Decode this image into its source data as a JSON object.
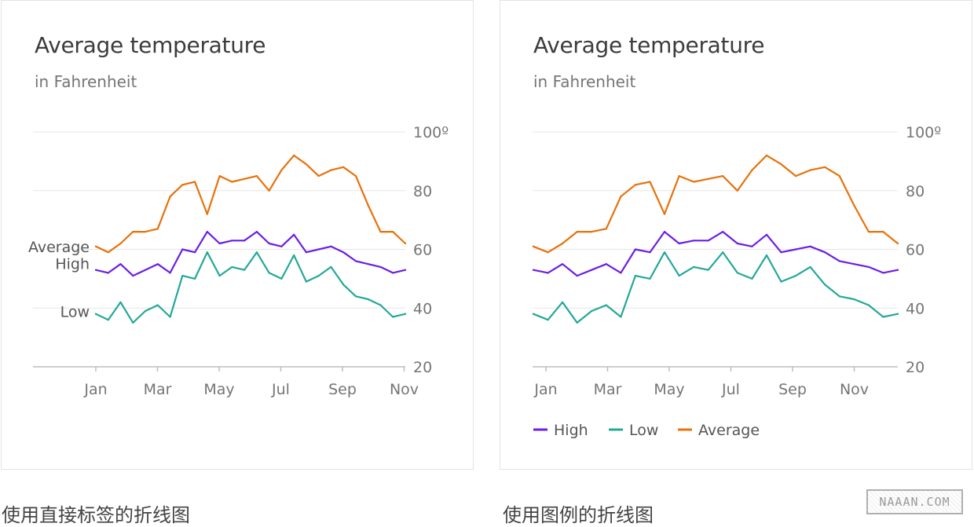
{
  "colors": {
    "high": "#6a1ee6",
    "low": "#23a898",
    "average": "#e8710a"
  },
  "left_card": {
    "title": "Average temperature",
    "subtitle": "in Fahrenheit"
  },
  "right_card": {
    "title": "Average temperature",
    "subtitle": "in Fahrenheit"
  },
  "captions": {
    "left": "使用直接标签的折线图",
    "right": "使用图例的折线图"
  },
  "watermark": "NAAAN.COM",
  "chart_data": [
    {
      "type": "line",
      "title": "Average temperature",
      "subtitle": "in Fahrenheit",
      "x_ticks": [
        "Jan",
        "Mar",
        "May",
        "Jul",
        "Sep",
        "Nov"
      ],
      "y_ticks": [
        "20",
        "40",
        "60",
        "80",
        "100º"
      ],
      "ylim": [
        20,
        100
      ],
      "grid": true,
      "labeling": "direct",
      "direct_labels": {
        "high": "High",
        "average": "Average",
        "low": "Low"
      },
      "series": [
        {
          "key": "high",
          "name": "High",
          "color": "#6a1ee6",
          "values": [
            53,
            52,
            55,
            51,
            53,
            55,
            52,
            60,
            59,
            66,
            62,
            63,
            63,
            66,
            62,
            61,
            65,
            59,
            60,
            61,
            59,
            56,
            55,
            54,
            52,
            53
          ]
        },
        {
          "key": "low",
          "name": "Low",
          "color": "#23a898",
          "values": [
            38,
            36,
            42,
            35,
            39,
            41,
            37,
            51,
            50,
            59,
            51,
            54,
            53,
            59,
            52,
            50,
            58,
            49,
            51,
            54,
            48,
            44,
            43,
            41,
            37,
            38
          ]
        },
        {
          "key": "average",
          "name": "Average",
          "color": "#e8710a",
          "values": [
            61,
            59,
            62,
            66,
            66,
            67,
            78,
            82,
            83,
            72,
            85,
            83,
            84,
            85,
            80,
            87,
            92,
            89,
            85,
            87,
            88,
            85,
            75,
            66,
            66,
            62
          ]
        }
      ]
    },
    {
      "type": "line",
      "title": "Average temperature",
      "subtitle": "in Fahrenheit",
      "x_ticks": [
        "Jan",
        "Mar",
        "May",
        "Jul",
        "Sep",
        "Nov"
      ],
      "y_ticks": [
        "20",
        "40",
        "60",
        "80",
        "100º"
      ],
      "ylim": [
        20,
        100
      ],
      "grid": true,
      "labeling": "legend",
      "legend_position": "bottom",
      "legend": [
        "High",
        "Low",
        "Average"
      ],
      "series": [
        {
          "key": "high",
          "name": "High",
          "color": "#6a1ee6",
          "values": [
            53,
            52,
            55,
            51,
            53,
            55,
            52,
            60,
            59,
            66,
            62,
            63,
            63,
            66,
            62,
            61,
            65,
            59,
            60,
            61,
            59,
            56,
            55,
            54,
            52,
            53
          ]
        },
        {
          "key": "low",
          "name": "Low",
          "color": "#23a898",
          "values": [
            38,
            36,
            42,
            35,
            39,
            41,
            37,
            51,
            50,
            59,
            51,
            54,
            53,
            59,
            52,
            50,
            58,
            49,
            51,
            54,
            48,
            44,
            43,
            41,
            37,
            38
          ]
        },
        {
          "key": "average",
          "name": "Average",
          "color": "#e8710a",
          "values": [
            61,
            59,
            62,
            66,
            66,
            67,
            78,
            82,
            83,
            72,
            85,
            83,
            84,
            85,
            80,
            87,
            92,
            89,
            85,
            87,
            88,
            85,
            75,
            66,
            66,
            62
          ]
        }
      ]
    }
  ]
}
